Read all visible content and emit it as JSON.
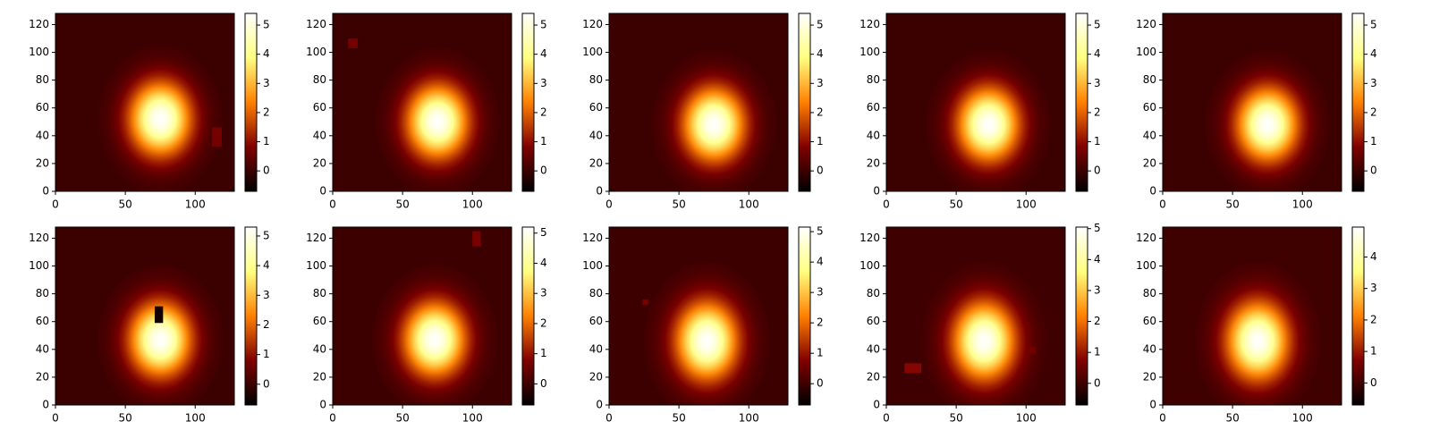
{
  "chart_data": [
    {
      "type": "image",
      "xlim": [
        0,
        128
      ],
      "ylim": [
        0,
        128
      ],
      "xticks": [
        0,
        50,
        100
      ],
      "yticks": [
        0,
        20,
        40,
        60,
        80,
        100,
        120
      ],
      "colorbar": {
        "lim": [
          -0.7,
          5.4
        ],
        "ticks": [
          0,
          1,
          2,
          3,
          4,
          5
        ]
      },
      "background": 0,
      "peak": {
        "x": 75,
        "y": 52,
        "value": 5.4,
        "sigma_x": 15,
        "sigma_y": 18
      },
      "patches": [
        {
          "x": 112,
          "y": 32,
          "w": 7,
          "h": 14,
          "value": 0.7
        }
      ]
    },
    {
      "type": "image",
      "xlim": [
        0,
        128
      ],
      "ylim": [
        0,
        128
      ],
      "xticks": [
        0,
        50,
        100
      ],
      "yticks": [
        0,
        20,
        40,
        60,
        80,
        100,
        120
      ],
      "colorbar": {
        "lim": [
          -0.7,
          5.4
        ],
        "ticks": [
          0,
          1,
          2,
          3,
          4,
          5
        ]
      },
      "background": 0,
      "peak": {
        "x": 75,
        "y": 50,
        "value": 5.4,
        "sigma_x": 15,
        "sigma_y": 18
      },
      "patches": [
        {
          "x": 11,
          "y": 103,
          "w": 7,
          "h": 7,
          "value": 0.7
        }
      ]
    },
    {
      "type": "image",
      "xlim": [
        0,
        128
      ],
      "ylim": [
        0,
        128
      ],
      "xticks": [
        0,
        50,
        100
      ],
      "yticks": [
        0,
        20,
        40,
        60,
        80,
        100,
        120
      ],
      "colorbar": {
        "lim": [
          -0.7,
          5.4
        ],
        "ticks": [
          0,
          1,
          2,
          3,
          4,
          5
        ]
      },
      "background": 0,
      "peak": {
        "x": 75,
        "y": 48,
        "value": 5.4,
        "sigma_x": 15,
        "sigma_y": 18
      },
      "patches": []
    },
    {
      "type": "image",
      "xlim": [
        0,
        128
      ],
      "ylim": [
        0,
        128
      ],
      "xticks": [
        0,
        50,
        100
      ],
      "yticks": [
        0,
        20,
        40,
        60,
        80,
        100,
        120
      ],
      "colorbar": {
        "lim": [
          -0.7,
          5.4
        ],
        "ticks": [
          0,
          1,
          2,
          3,
          4,
          5
        ]
      },
      "background": 0,
      "peak": {
        "x": 73,
        "y": 48,
        "value": 5.4,
        "sigma_x": 15,
        "sigma_y": 18
      },
      "patches": []
    },
    {
      "type": "image",
      "xlim": [
        0,
        128
      ],
      "ylim": [
        0,
        128
      ],
      "xticks": [
        0,
        50,
        100
      ],
      "yticks": [
        0,
        20,
        40,
        60,
        80,
        100,
        120
      ],
      "colorbar": {
        "lim": [
          -0.7,
          5.4
        ],
        "ticks": [
          0,
          1,
          2,
          3,
          4,
          5
        ]
      },
      "background": 0,
      "peak": {
        "x": 75,
        "y": 48,
        "value": 5.4,
        "sigma_x": 15,
        "sigma_y": 18
      },
      "patches": []
    },
    {
      "type": "image",
      "xlim": [
        0,
        128
      ],
      "ylim": [
        0,
        128
      ],
      "xticks": [
        0,
        50,
        100
      ],
      "yticks": [
        0,
        20,
        40,
        60,
        80,
        100,
        120
      ],
      "colorbar": {
        "lim": [
          -0.7,
          5.3
        ],
        "ticks": [
          0,
          1,
          2,
          3,
          4,
          5
        ]
      },
      "background": 0,
      "peak": {
        "x": 75,
        "y": 47,
        "value": 5.3,
        "sigma_x": 15,
        "sigma_y": 18
      },
      "patches": [
        {
          "x": 71,
          "y": 59,
          "w": 6,
          "h": 12,
          "value": -0.5
        }
      ]
    },
    {
      "type": "image",
      "xlim": [
        0,
        128
      ],
      "ylim": [
        0,
        128
      ],
      "xticks": [
        0,
        50,
        100
      ],
      "yticks": [
        0,
        20,
        40,
        60,
        80,
        100,
        120
      ],
      "colorbar": {
        "lim": [
          -0.7,
          5.2
        ],
        "ticks": [
          0,
          1,
          2,
          3,
          4,
          5
        ]
      },
      "background": 0,
      "peak": {
        "x": 73,
        "y": 47,
        "value": 5.2,
        "sigma_x": 15,
        "sigma_y": 18
      },
      "patches": [
        {
          "x": 100,
          "y": 114,
          "w": 6,
          "h": 11,
          "value": 0.7
        }
      ]
    },
    {
      "type": "image",
      "xlim": [
        0,
        128
      ],
      "ylim": [
        0,
        128
      ],
      "xticks": [
        0,
        50,
        100
      ],
      "yticks": [
        0,
        20,
        40,
        60,
        80,
        100,
        120
      ],
      "colorbar": {
        "lim": [
          -0.7,
          5.15
        ],
        "ticks": [
          0,
          1,
          2,
          3,
          4,
          5
        ]
      },
      "background": 0,
      "peak": {
        "x": 70,
        "y": 46,
        "value": 5.15,
        "sigma_x": 15,
        "sigma_y": 19
      },
      "patches": [
        {
          "x": 24,
          "y": 72,
          "w": 4,
          "h": 4,
          "value": 0.7
        }
      ]
    },
    {
      "type": "image",
      "xlim": [
        0,
        128
      ],
      "ylim": [
        0,
        128
      ],
      "xticks": [
        0,
        50,
        100
      ],
      "yticks": [
        0,
        20,
        40,
        60,
        80,
        100,
        120
      ],
      "colorbar": {
        "lim": [
          -0.7,
          5.05
        ],
        "ticks": [
          0,
          1,
          2,
          3,
          4,
          5
        ]
      },
      "background": 0,
      "peak": {
        "x": 70,
        "y": 46,
        "value": 5.05,
        "sigma_x": 15,
        "sigma_y": 19
      },
      "patches": [
        {
          "x": 13,
          "y": 23,
          "w": 12,
          "h": 7,
          "value": 0.8
        },
        {
          "x": 101,
          "y": 37,
          "w": 6,
          "h": 5,
          "value": 0.6
        }
      ]
    },
    {
      "type": "image",
      "xlim": [
        0,
        128
      ],
      "ylim": [
        0,
        128
      ],
      "xticks": [
        0,
        50,
        100
      ],
      "yticks": [
        0,
        20,
        40,
        60,
        80,
        100,
        120
      ],
      "colorbar": {
        "lim": [
          -0.7,
          4.95
        ],
        "ticks": [
          0,
          1,
          2,
          3,
          4
        ]
      },
      "background": 0,
      "peak": {
        "x": 68,
        "y": 46,
        "value": 4.95,
        "sigma_x": 15,
        "sigma_y": 19
      },
      "patches": []
    }
  ]
}
